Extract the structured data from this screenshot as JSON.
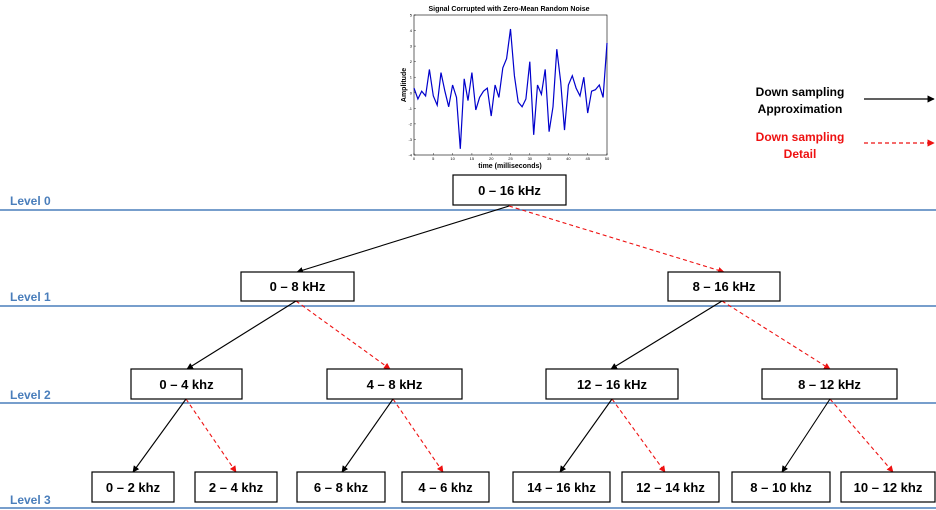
{
  "chart_data": {
    "type": "line",
    "title": "Signal Corrupted with Zero-Mean Random Noise",
    "xlabel": "time (milliseconds)",
    "ylabel": "Amplitude",
    "xlim": [
      0,
      50
    ],
    "ylim": [
      -4,
      5
    ],
    "xticks": [
      "0",
      "5",
      "10",
      "15",
      "20",
      "25",
      "30",
      "35",
      "40",
      "45",
      "50"
    ],
    "yticks": [
      "-4",
      "-3",
      "-2",
      "-1",
      "0",
      "1",
      "2",
      "3",
      "4",
      "5"
    ],
    "color": "#0000cc",
    "x": [
      0,
      1,
      2,
      3,
      4,
      5,
      6,
      7,
      8,
      9,
      10,
      11,
      12,
      13,
      14,
      15,
      16,
      17,
      18,
      19,
      20,
      21,
      22,
      23,
      24,
      25,
      26,
      27,
      28,
      29,
      30,
      31,
      32,
      33,
      34,
      35,
      36,
      37,
      38,
      39,
      40,
      41,
      42,
      43,
      44,
      45,
      46,
      47,
      48,
      49,
      50
    ],
    "y": [
      0.3,
      -0.4,
      0.1,
      -0.2,
      1.5,
      -0.2,
      -0.8,
      1.3,
      0.1,
      -0.9,
      0.5,
      -0.3,
      -3.6,
      0.9,
      -0.5,
      1.3,
      -1.1,
      -0.3,
      0.1,
      0.3,
      -1.5,
      0.5,
      -0.3,
      1.6,
      2.2,
      4.1,
      1.1,
      -0.6,
      -0.9,
      -0.4,
      2.0,
      -2.7,
      0.5,
      -0.1,
      1.5,
      -2.5,
      -0.9,
      2.8,
      0.7,
      -2.4,
      0.5,
      1.1,
      0.3,
      -0.2,
      1.0,
      -1.3,
      0.1,
      0.2,
      0.5,
      -0.3,
      3.2
    ]
  },
  "diagram": {
    "levels": [
      "Level 0",
      "Level 1",
      "Level 2",
      "Level 3"
    ],
    "nodes": {
      "l0": "0 – 16 kHz",
      "l1a": "0 – 8 kHz",
      "l1b": "8 – 16 kHz",
      "l2a": "0 – 4 khz",
      "l2b": "4 – 8 kHz",
      "l2c": "12 – 16 kHz",
      "l2d": "8 – 12 kHz",
      "l3a": "0 – 2 khz",
      "l3b": "2 – 4 khz",
      "l3c": "6 – 8 khz",
      "l3d": "4 – 6 khz",
      "l3e": "14 – 16 khz",
      "l3f": "12 – 14 khz",
      "l3g": "8 – 10 khz",
      "l3h": "10 – 12 khz"
    }
  },
  "legend": {
    "approx_line1": "Down sampling",
    "approx_line2": "Approximation",
    "detail_line1": "Down sampling",
    "detail_line2": "Detail",
    "approx_color": "#000000",
    "detail_color": "#ee1111"
  },
  "colors": {
    "level_line": "#4a7ebb",
    "level_text": "#4a7ebb",
    "approx_arrow": "#000000",
    "detail_arrow": "#ee1111"
  }
}
